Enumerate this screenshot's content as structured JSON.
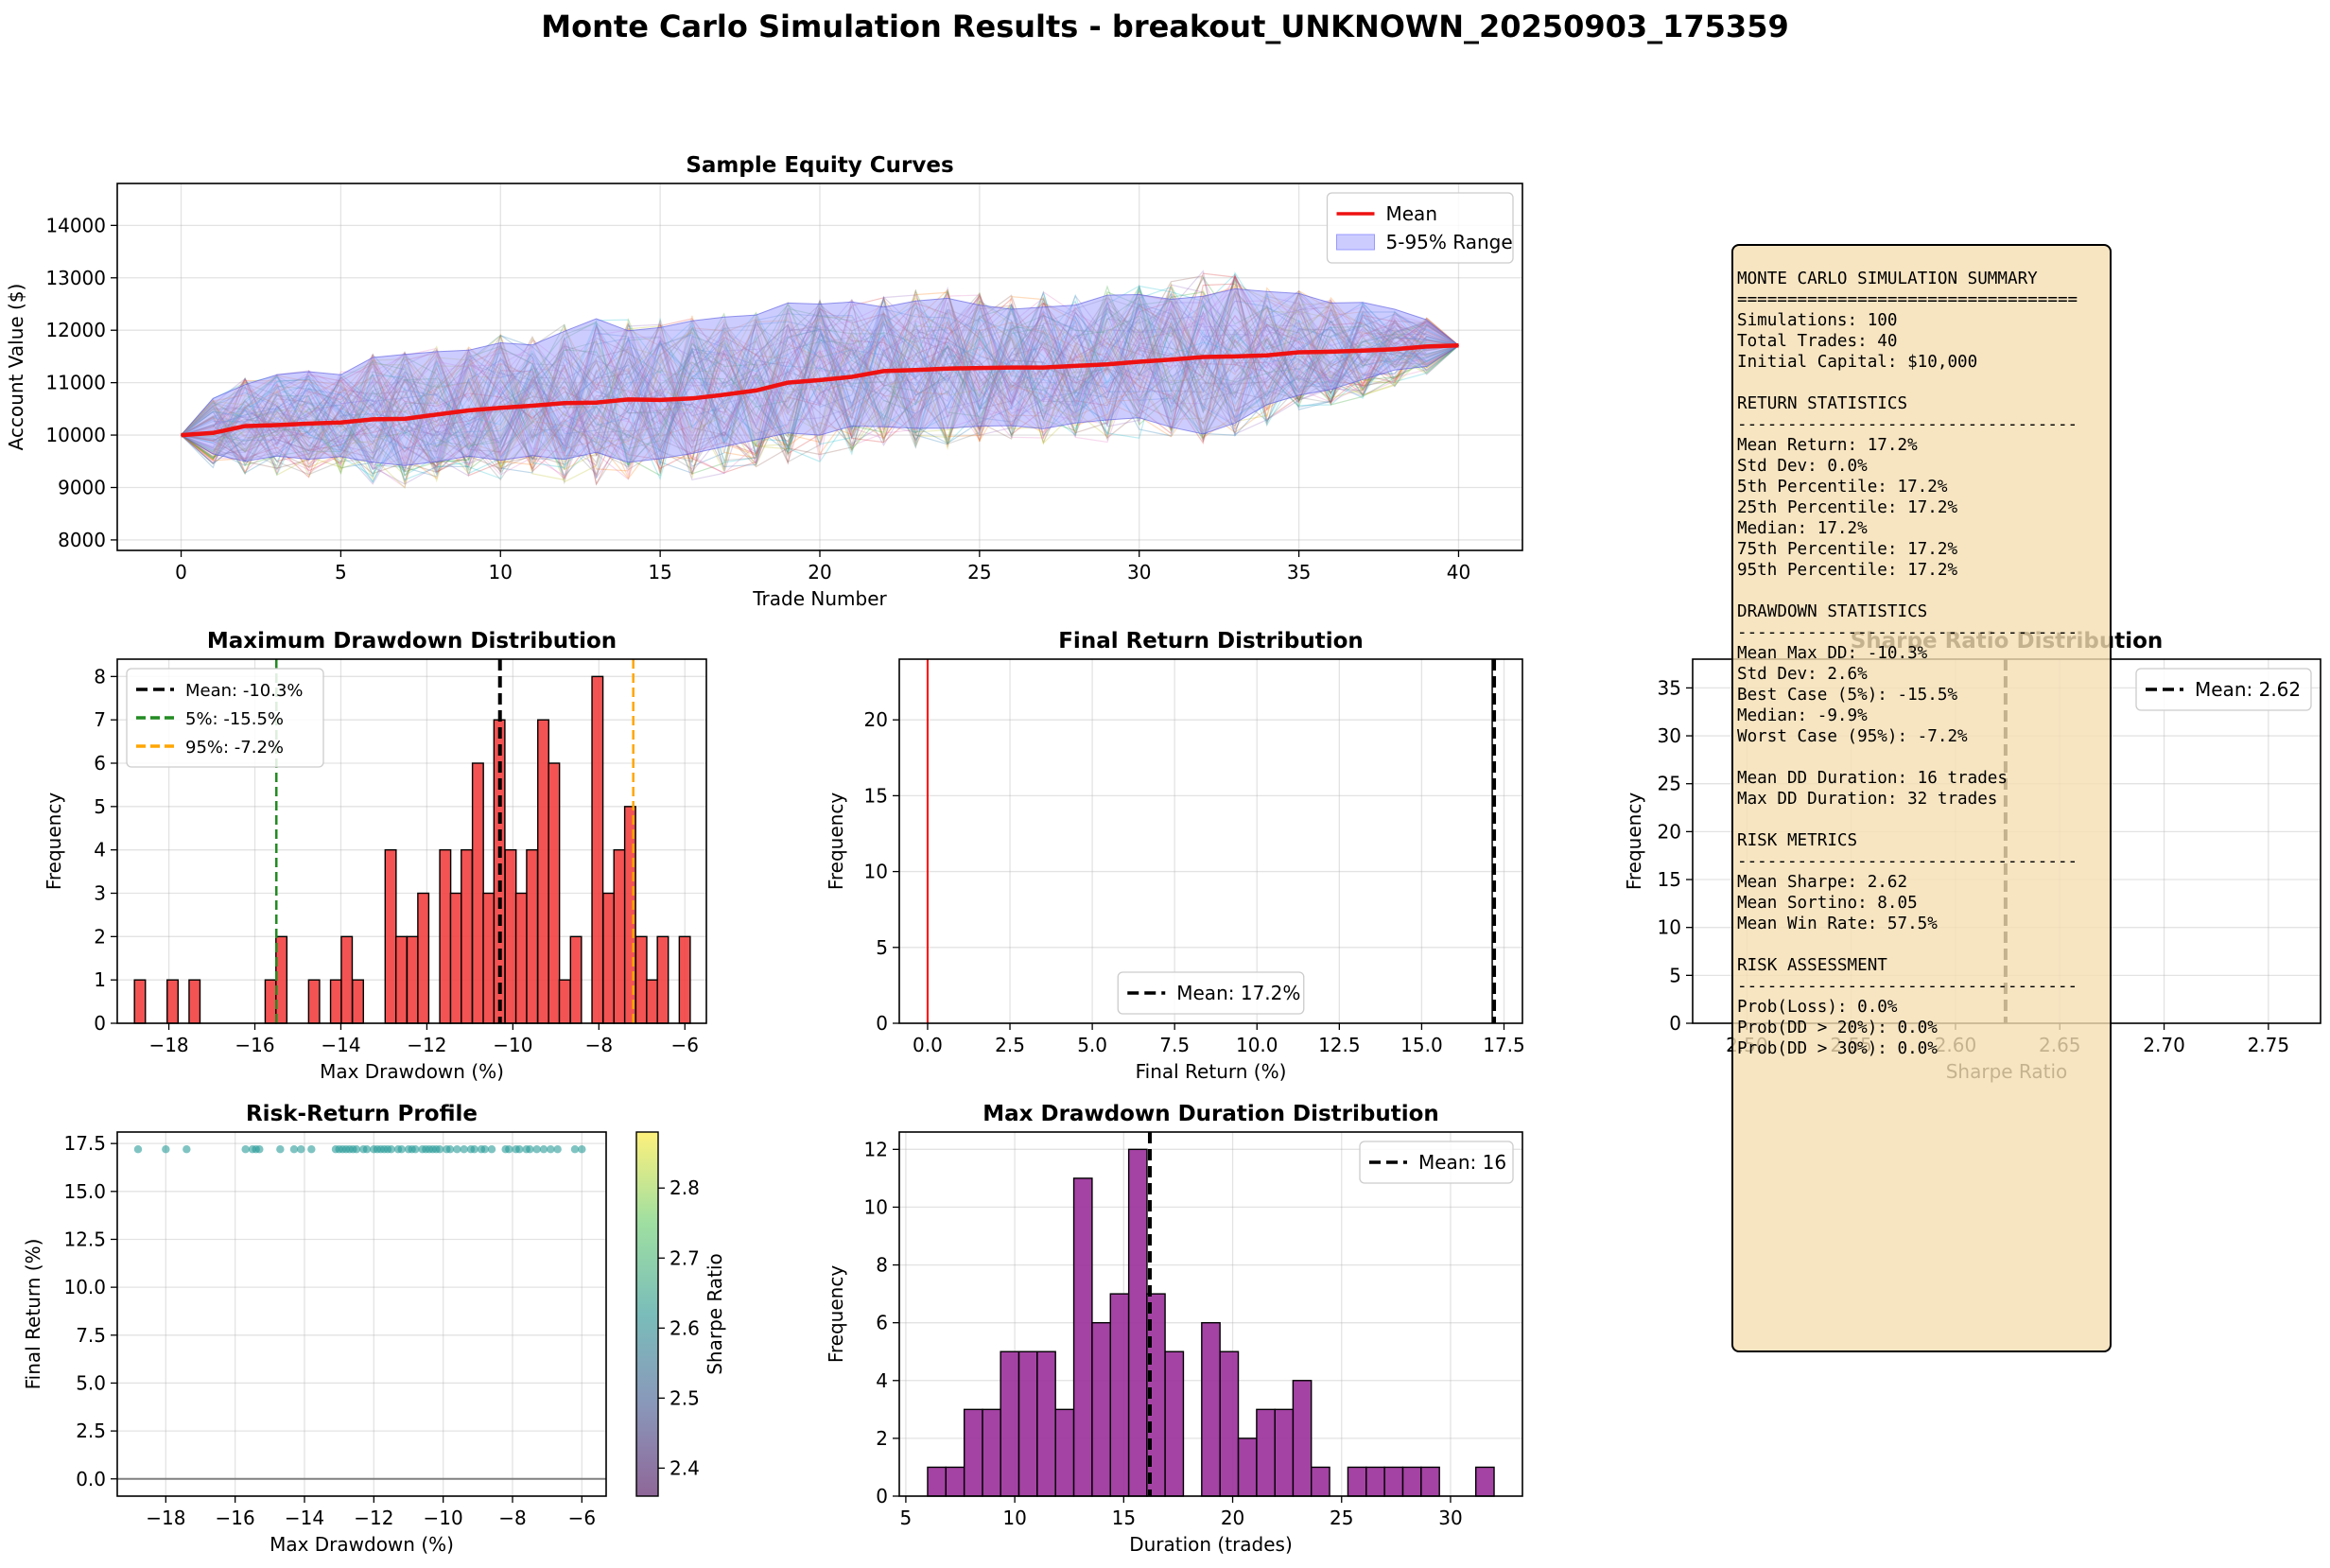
{
  "figure": {
    "title": "Monte Carlo Simulation Results - breakout_UNKNOWN_20250903_175359"
  },
  "colors": {
    "mean_line": "#ee1111",
    "band_fill": "#9999ff",
    "drawdown_bars": "#f24040",
    "duration_bars": "#9a2f9a",
    "scatter_points": "#2a9d9a",
    "summary_box": "#f5deb3"
  },
  "chart_data": [
    {
      "id": "equity",
      "type": "line",
      "title": "Sample Equity Curves",
      "xlabel": "Trade Number",
      "ylabel": "Account Value ($)",
      "xlim": [
        -2,
        42
      ],
      "ylim": [
        7800,
        14800
      ],
      "xticks": [
        0,
        5,
        10,
        15,
        20,
        25,
        30,
        35,
        40
      ],
      "yticks": [
        8000,
        9000,
        10000,
        11000,
        12000,
        13000,
        14000
      ],
      "grid": true,
      "legend_position": "top-right",
      "legend": [
        "Mean",
        "5-95% Range"
      ],
      "mean": {
        "name": "Mean",
        "x": [
          0,
          1,
          2,
          3,
          4,
          5,
          6,
          7,
          8,
          9,
          10,
          11,
          12,
          13,
          14,
          15,
          16,
          17,
          18,
          19,
          20,
          21,
          22,
          23,
          24,
          25,
          26,
          27,
          28,
          29,
          30,
          31,
          32,
          33,
          34,
          35,
          36,
          37,
          38,
          39,
          40
        ],
        "y": [
          10000,
          10040,
          10170,
          10190,
          10220,
          10240,
          10300,
          10310,
          10390,
          10470,
          10520,
          10560,
          10610,
          10620,
          10680,
          10670,
          10700,
          10770,
          10850,
          11000,
          11050,
          11110,
          11220,
          11240,
          11270,
          11280,
          11290,
          11290,
          11320,
          11350,
          11400,
          11440,
          11490,
          11500,
          11520,
          11580,
          11590,
          11610,
          11640,
          11690,
          11710
        ]
      },
      "band": {
        "name": "5-95% Range",
        "x": [
          0,
          1,
          2,
          3,
          4,
          5,
          6,
          7,
          8,
          9,
          10,
          11,
          12,
          13,
          14,
          15,
          16,
          17,
          18,
          19,
          20,
          21,
          22,
          23,
          24,
          25,
          26,
          27,
          28,
          29,
          30,
          31,
          32,
          33,
          34,
          35,
          36,
          37,
          38,
          39,
          40
        ],
        "upper": [
          10000,
          10700,
          10960,
          11150,
          11210,
          11150,
          11480,
          11540,
          11590,
          11620,
          11760,
          11720,
          11980,
          12220,
          11990,
          12050,
          12180,
          12250,
          12290,
          12520,
          12500,
          12540,
          12440,
          12560,
          12610,
          12480,
          12400,
          12440,
          12480,
          12670,
          12680,
          12590,
          12650,
          12790,
          12740,
          12700,
          12520,
          12530,
          12400,
          12200,
          11710
        ],
        "lower": [
          10000,
          9640,
          9500,
          9600,
          9540,
          9590,
          9480,
          9420,
          9490,
          9600,
          9520,
          9610,
          9540,
          9670,
          9480,
          9550,
          9650,
          9780,
          9910,
          10040,
          10000,
          10170,
          10160,
          10130,
          10130,
          10170,
          10180,
          10120,
          10230,
          10290,
          10330,
          10150,
          10020,
          10230,
          10580,
          10760,
          10870,
          11060,
          11240,
          11310,
          11710
        ]
      },
      "sample_paths_count": 100
    },
    {
      "id": "drawdown",
      "type": "bar",
      "title": "Maximum Drawdown Distribution",
      "xlabel": "Max Drawdown (%)",
      "ylabel": "Frequency",
      "xlim": [
        -19.2,
        -5.5
      ],
      "ylim": [
        0,
        8.4
      ],
      "xticks": [
        -18,
        -16,
        -14,
        -12,
        -10,
        -8,
        -6
      ],
      "yticks": [
        0,
        1,
        2,
        3,
        4,
        5,
        6,
        7,
        8
      ],
      "grid": true,
      "legend_position": "top-left",
      "bin_width": 0.254,
      "bin_left": [
        -18.8,
        -18.04,
        -17.53,
        -15.76,
        -15.51,
        -14.75,
        -14.24,
        -13.99,
        -13.73,
        -12.97,
        -12.72,
        -12.46,
        -12.21,
        -11.7,
        -11.45,
        -11.2,
        -10.94,
        -10.69,
        -10.44,
        -10.18,
        -9.93,
        -9.68,
        -9.42,
        -9.17,
        -8.92,
        -8.66,
        -8.16,
        -7.9,
        -7.65,
        -7.4,
        -7.14,
        -6.89,
        -6.64,
        -6.13
      ],
      "values": [
        1,
        1,
        1,
        1,
        2,
        1,
        1,
        2,
        1,
        4,
        2,
        2,
        3,
        4,
        3,
        4,
        6,
        3,
        7,
        4,
        3,
        4,
        7,
        6,
        1,
        2,
        8,
        3,
        4,
        5,
        2,
        1,
        2,
        2
      ],
      "reference_lines": [
        {
          "label": "Mean: -10.3%",
          "x": -10.3,
          "color": "#000000"
        },
        {
          "label": "5%: -15.5%",
          "x": -15.5,
          "color": "#228b22"
        },
        {
          "label": "95%: -7.2%",
          "x": -7.2,
          "color": "#ffa500"
        }
      ]
    },
    {
      "id": "final_return",
      "type": "bar",
      "title": "Final Return Distribution",
      "xlabel": "Final Return (%)",
      "ylabel": "Frequency",
      "xlim": [
        -0.86,
        18.06
      ],
      "ylim": [
        0,
        24
      ],
      "xticks": [
        0.0,
        2.5,
        5.0,
        7.5,
        10.0,
        12.5,
        15.0,
        17.5
      ],
      "yticks": [
        0,
        5,
        10,
        15,
        20
      ],
      "grid": true,
      "legend_position": "bottom-center",
      "reference_lines": [
        {
          "label": "Mean: 17.2%",
          "x": 17.2,
          "color": "#000000"
        },
        {
          "label": "",
          "x": 0,
          "color": "#ff0000"
        }
      ]
    },
    {
      "id": "sharpe",
      "type": "bar",
      "title": "Sharpe Ratio Distribution",
      "xlabel": "Sharpe Ratio",
      "ylabel": "Frequency",
      "xlim": [
        2.474,
        2.775
      ],
      "ylim": [
        0,
        38
      ],
      "xticks": [
        2.5,
        2.55,
        2.6,
        2.65,
        2.7,
        2.75
      ],
      "yticks": [
        0,
        5,
        10,
        15,
        20,
        25,
        30,
        35
      ],
      "grid": true,
      "legend_position": "top-right",
      "reference_lines": [
        {
          "label": "Mean: 2.62",
          "x": 2.624,
          "color": "#000000"
        }
      ]
    },
    {
      "id": "risk_return",
      "type": "scatter",
      "title": "Risk-Return Profile",
      "xlabel": "Max Drawdown (%)",
      "ylabel": "Final Return (%)",
      "xlim": [
        -19.4,
        -5.3
      ],
      "ylim": [
        -0.9,
        18.1
      ],
      "xticks": [
        -18,
        -16,
        -14,
        -12,
        -10,
        -8,
        -6
      ],
      "yticks": [
        0.0,
        2.5,
        5.0,
        7.5,
        10.0,
        12.5,
        15.0,
        17.5
      ],
      "grid": true,
      "colorbar": {
        "label": "Sharpe Ratio",
        "range": [
          2.36,
          2.88
        ],
        "ticks": [
          2.4,
          2.5,
          2.6,
          2.7,
          2.8
        ]
      },
      "x": [
        -18.8,
        -18.0,
        -17.4,
        -15.7,
        -15.5,
        -15.4,
        -15.3,
        -14.7,
        -14.3,
        -14.1,
        -13.8,
        -13.1,
        -13.0,
        -12.9,
        -12.8,
        -12.7,
        -12.6,
        -12.5,
        -12.3,
        -12.2,
        -12.0,
        -11.9,
        -11.8,
        -11.7,
        -11.6,
        -11.5,
        -11.3,
        -11.2,
        -11.0,
        -10.9,
        -10.8,
        -10.6,
        -10.5,
        -10.4,
        -10.3,
        -10.2,
        -10.1,
        -9.9,
        -9.8,
        -9.6,
        -9.4,
        -9.2,
        -9.1,
        -8.9,
        -8.8,
        -8.6,
        -8.2,
        -8.1,
        -7.9,
        -7.8,
        -7.6,
        -7.5,
        -7.3,
        -7.1,
        -6.9,
        -6.7,
        -6.2,
        -6.0
      ],
      "y": [
        17.2,
        17.2,
        17.2,
        17.2,
        17.2,
        17.2,
        17.2,
        17.2,
        17.2,
        17.2,
        17.2,
        17.2,
        17.2,
        17.2,
        17.2,
        17.2,
        17.2,
        17.2,
        17.2,
        17.2,
        17.2,
        17.2,
        17.2,
        17.2,
        17.2,
        17.2,
        17.2,
        17.2,
        17.2,
        17.2,
        17.2,
        17.2,
        17.2,
        17.2,
        17.2,
        17.2,
        17.2,
        17.2,
        17.2,
        17.2,
        17.2,
        17.2,
        17.2,
        17.2,
        17.2,
        17.2,
        17.2,
        17.2,
        17.2,
        17.2,
        17.2,
        17.2,
        17.2,
        17.2,
        17.2,
        17.2,
        17.2,
        17.2
      ],
      "hline": 0
    },
    {
      "id": "duration",
      "type": "bar",
      "title": "Max Drawdown Duration Distribution",
      "xlabel": "Duration (trades)",
      "ylabel": "Frequency",
      "xlim": [
        4.7,
        33.3
      ],
      "ylim": [
        0,
        12.6
      ],
      "xticks": [
        5,
        10,
        15,
        20,
        25,
        30
      ],
      "yticks": [
        0,
        2,
        4,
        6,
        8,
        10,
        12
      ],
      "grid": true,
      "legend_position": "top-right",
      "bin_width": 0.839,
      "bin_left": [
        6.0,
        6.84,
        7.68,
        8.52,
        9.35,
        10.19,
        11.03,
        11.87,
        12.71,
        13.55,
        14.39,
        15.23,
        16.06,
        16.9,
        17.74,
        18.58,
        19.42,
        20.26,
        21.1,
        21.94,
        22.77,
        23.61,
        24.45,
        25.29,
        26.13,
        26.97,
        27.81,
        28.65,
        29.48,
        30.32,
        31.16
      ],
      "values": [
        1,
        1,
        3,
        3,
        5,
        5,
        5,
        3,
        11,
        6,
        7,
        12,
        7,
        5,
        0,
        6,
        5,
        2,
        3,
        3,
        4,
        1,
        0,
        1,
        1,
        1,
        1,
        1,
        0,
        0,
        1
      ],
      "reference_lines": [
        {
          "label": "Mean: 16",
          "x": 16.2,
          "color": "#000000"
        }
      ]
    }
  ],
  "summary_lines": [
    "MONTE CARLO SIMULATION SUMMARY",
    "==================================",
    "Simulations: 100",
    "Total Trades: 40",
    "Initial Capital: $10,000",
    "",
    "RETURN STATISTICS",
    "----------------------------------",
    "Mean Return: 17.2%",
    "Std Dev: 0.0%",
    "5th Percentile: 17.2%",
    "25th Percentile: 17.2%",
    "Median: 17.2%",
    "75th Percentile: 17.2%",
    "95th Percentile: 17.2%",
    "",
    "DRAWDOWN STATISTICS",
    "----------------------------------",
    "Mean Max DD: -10.3%",
    "Std Dev: 2.6%",
    "Best Case (5%): -15.5%",
    "Median: -9.9%",
    "Worst Case (95%): -7.2%",
    "",
    "Mean DD Duration: 16 trades",
    "Max DD Duration: 32 trades",
    "",
    "RISK METRICS",
    "----------------------------------",
    "Mean Sharpe: 2.62",
    "Mean Sortino: 8.05",
    "Mean Win Rate: 57.5%",
    "",
    "RISK ASSESSMENT",
    "----------------------------------",
    "Prob(Loss): 0.0%",
    "Prob(DD > 20%): 0.0%",
    "Prob(DD > 30%): 0.0%"
  ]
}
